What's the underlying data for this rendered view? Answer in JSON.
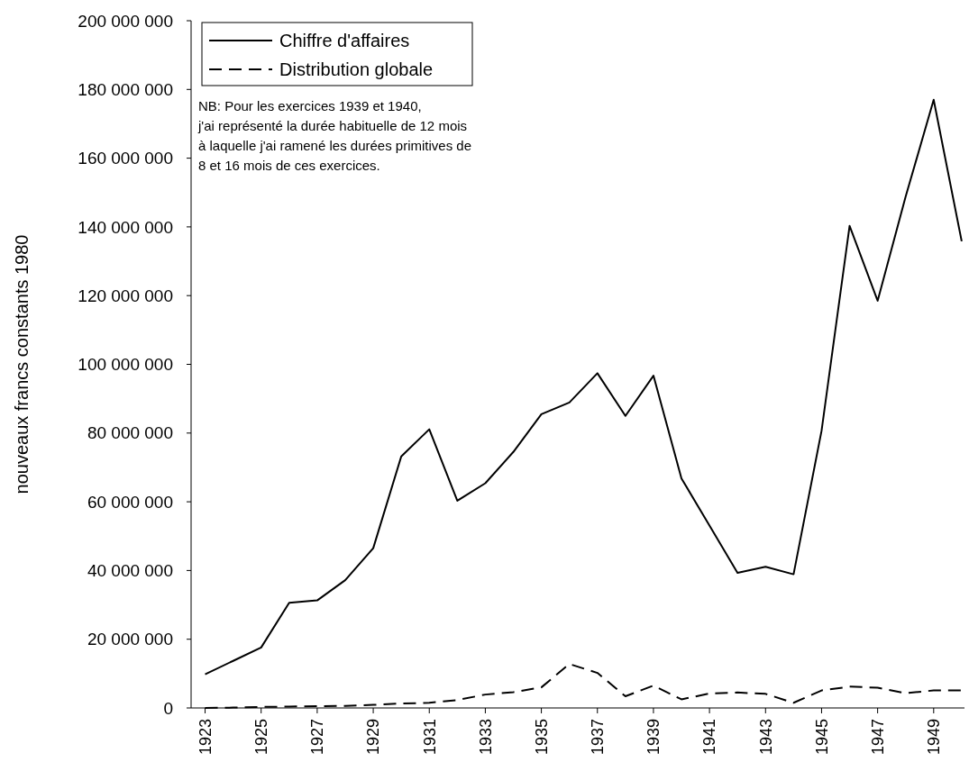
{
  "chart_data": {
    "type": "line",
    "ylabel": "nouveaux francs constants 1980",
    "x": [
      1923,
      1924,
      1925,
      1926,
      1927,
      1928,
      1929,
      1930,
      1931,
      1932,
      1933,
      1934,
      1935,
      1936,
      1937,
      1938,
      1939,
      1940,
      1941,
      1942,
      1943,
      1944,
      1945,
      1946,
      1947,
      1948,
      1949,
      1950
    ],
    "series": [
      {
        "name": "Chiffre d'affaires",
        "color": "#000000",
        "line_style": "solid",
        "values": [
          9800000,
          13700000,
          17600000,
          30600000,
          31300000,
          37200000,
          46500000,
          73200000,
          81100000,
          60300000,
          65400000,
          74500000,
          85500000,
          88900000,
          97400000,
          85000000,
          96700000,
          66800000,
          53100000,
          39300000,
          41100000,
          38900000,
          80700000,
          140300000,
          118500000,
          148800000,
          177000000,
          135800000
        ]
      },
      {
        "name": "Distribution globale",
        "color": "#000000",
        "line_style": "dashed",
        "values": [
          0,
          100000,
          300000,
          400000,
          500000,
          600000,
          900000,
          1300000,
          1500000,
          2300000,
          3900000,
          4600000,
          6000000,
          12800000,
          10200000,
          3400000,
          6500000,
          2500000,
          4200000,
          4500000,
          4100000,
          1500000,
          5100000,
          6200000,
          5900000,
          4300000,
          5100000,
          5100000
        ]
      }
    ],
    "xlim": [
      1922.5,
      1950.1
    ],
    "xticks": [
      1923,
      1925,
      1927,
      1929,
      1931,
      1933,
      1935,
      1937,
      1939,
      1941,
      1943,
      1945,
      1947,
      1949
    ],
    "ylim": [
      0,
      200000000
    ],
    "yticks": [
      {
        "value": 0,
        "label": "0"
      },
      {
        "value": 20000000,
        "label": "20 000 000"
      },
      {
        "value": 40000000,
        "label": "40 000 000"
      },
      {
        "value": 60000000,
        "label": "60 000 000"
      },
      {
        "value": 80000000,
        "label": "80 000 000"
      },
      {
        "value": 100000000,
        "label": "100 000 000"
      },
      {
        "value": 120000000,
        "label": "120 000 000"
      },
      {
        "value": 140000000,
        "label": "140 000 000"
      },
      {
        "value": 160000000,
        "label": "160 000 000"
      },
      {
        "value": 180000000,
        "label": "180 000 000"
      },
      {
        "value": 200000000,
        "label": "200 000 000"
      }
    ],
    "legend": "top left",
    "grid": false,
    "marker": "none",
    "annotations": [
      "NB: Pour les exercices 1939 et 1940,\nj'ai représenté la durée habituelle de 12 mois\nà laquelle j'ai ramené les durées primitives de\n8 et 16 mois de ces exercices."
    ]
  }
}
